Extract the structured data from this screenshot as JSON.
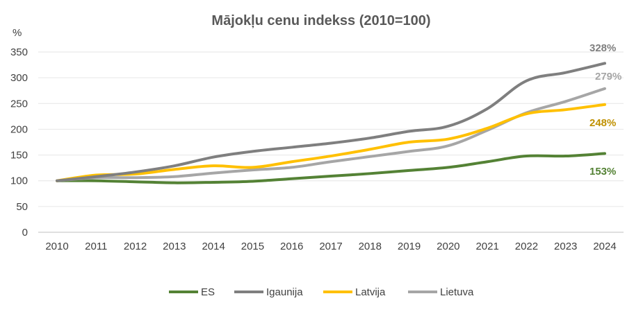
{
  "chart_data": {
    "type": "line",
    "title": "Mājokļu cenu indekss (2010=100)",
    "ylabel": "%",
    "xlabel": "",
    "ylim": [
      0,
      350
    ],
    "yticks": [
      0,
      50,
      100,
      150,
      200,
      250,
      300,
      350
    ],
    "grid": "horizontal",
    "legend_position": "bottom",
    "categories": [
      "2010",
      "2011",
      "2012",
      "2013",
      "2014",
      "2015",
      "2016",
      "2017",
      "2018",
      "2019",
      "2020",
      "2021",
      "2022",
      "2023",
      "2024"
    ],
    "series": [
      {
        "name": "ES",
        "color": "#548235",
        "end_label": "153%",
        "values": [
          100,
          100,
          98,
          96,
          97,
          99,
          104,
          109,
          114,
          120,
          126,
          137,
          148,
          148,
          153
        ]
      },
      {
        "name": "Igaunija",
        "color": "#7f7f7f",
        "end_label": "328%",
        "values": [
          100,
          108,
          117,
          129,
          146,
          157,
          165,
          173,
          183,
          196,
          206,
          240,
          294,
          310,
          328
        ]
      },
      {
        "name": "Latvija",
        "color": "#ffc000",
        "end_label": "248%",
        "values": [
          100,
          111,
          113,
          122,
          129,
          126,
          137,
          148,
          161,
          175,
          181,
          202,
          230,
          238,
          248
        ]
      },
      {
        "name": "Lietuva",
        "color": "#a6a6a6",
        "end_label": "279%",
        "values": [
          100,
          106,
          106,
          108,
          115,
          121,
          126,
          137,
          147,
          157,
          168,
          198,
          232,
          254,
          279
        ]
      }
    ],
    "end_label_colors": [
      "#548235",
      "#7f7f7f",
      "#bf9000",
      "#a6a6a6"
    ]
  }
}
